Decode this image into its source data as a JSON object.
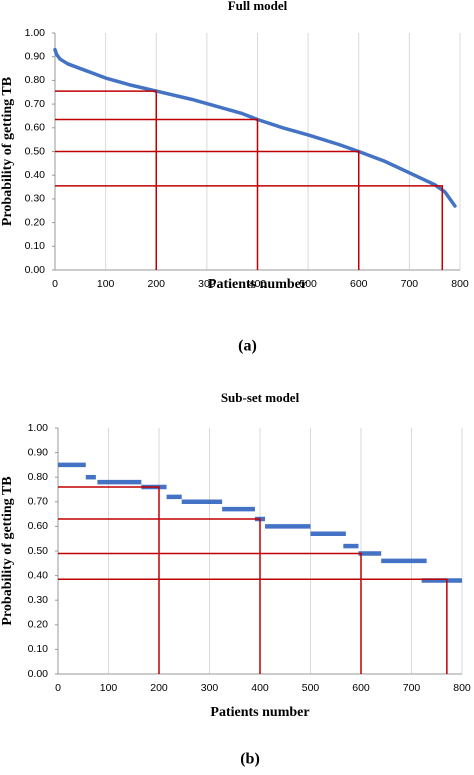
{
  "chart_data": [
    {
      "type": "line",
      "title": "Full model",
      "xlabel": "Patients number",
      "ylabel": "Probability of getting TB",
      "caption": "(a)",
      "x": [
        0,
        3,
        10,
        25,
        50,
        75,
        100,
        150,
        200,
        270,
        320,
        370,
        400,
        450,
        500,
        560,
        600,
        650,
        700,
        750,
        770,
        780,
        790
      ],
      "values": [
        0.93,
        0.91,
        0.89,
        0.87,
        0.85,
        0.83,
        0.81,
        0.78,
        0.755,
        0.72,
        0.69,
        0.66,
        0.635,
        0.6,
        0.57,
        0.53,
        0.5,
        0.46,
        0.41,
        0.36,
        0.33,
        0.3,
        0.27
      ],
      "color": "#4472c4",
      "reference_lines": {
        "x": [
          200,
          400,
          600,
          765
        ],
        "y": [
          0.755,
          0.635,
          0.5,
          0.355
        ],
        "color": "#c00000"
      },
      "xlim": [
        0,
        800
      ],
      "xticks": [
        0,
        100,
        200,
        300,
        400,
        500,
        600,
        700,
        800
      ],
      "ylim": [
        0,
        1
      ],
      "yticks": [
        {
          "value": 0,
          "label": "0.00"
        },
        {
          "value": 0.1,
          "label": "0.10"
        },
        {
          "value": 0.2,
          "label": "0.20"
        },
        {
          "value": 0.3,
          "label": "0.30"
        },
        {
          "value": 0.4,
          "label": "0.40"
        },
        {
          "value": 0.5,
          "label": "0.50"
        },
        {
          "value": 0.6,
          "label": "0.60"
        },
        {
          "value": 0.7,
          "label": "0.70"
        },
        {
          "value": 0.8,
          "label": "0.80"
        },
        {
          "value": 0.9,
          "label": "0.90"
        },
        {
          "value": 1,
          "label": "1.00"
        }
      ],
      "grid": "x"
    },
    {
      "type": "segment",
      "title": "Sub-set model",
      "xlabel": "Patients number",
      "ylabel": "Probability of getting TB",
      "caption": "(b)",
      "x_start": [
        0,
        55,
        78,
        165,
        215,
        245,
        325,
        390,
        410,
        500,
        565,
        595,
        640,
        720
      ],
      "x_end": [
        55,
        75,
        165,
        215,
        245,
        325,
        390,
        410,
        500,
        570,
        595,
        640,
        730,
        800
      ],
      "values": [
        0.85,
        0.8,
        0.78,
        0.76,
        0.72,
        0.7,
        0.67,
        0.63,
        0.6,
        0.57,
        0.52,
        0.49,
        0.46,
        0.38
      ],
      "color": "#4472c4",
      "reference_lines": {
        "x": [
          200,
          400,
          600,
          770
        ],
        "y": [
          0.76,
          0.63,
          0.49,
          0.385
        ],
        "color": "#c00000"
      },
      "xlim": [
        0,
        800
      ],
      "xticks": [
        0,
        100,
        200,
        300,
        400,
        500,
        600,
        700,
        800
      ],
      "ylim": [
        0,
        1
      ],
      "yticks": [
        {
          "value": 0,
          "label": "0.00"
        },
        {
          "value": 0.1,
          "label": "0.10"
        },
        {
          "value": 0.2,
          "label": "0.20"
        },
        {
          "value": 0.3,
          "label": "0.30"
        },
        {
          "value": 0.4,
          "label": "0.40"
        },
        {
          "value": 0.5,
          "label": "0.50"
        },
        {
          "value": 0.6,
          "label": "0.60"
        },
        {
          "value": 0.7,
          "label": "0.70"
        },
        {
          "value": 0.8,
          "label": "0.80"
        },
        {
          "value": 0.9,
          "label": "0.90"
        },
        {
          "value": 1,
          "label": "1.00"
        }
      ],
      "grid": "x"
    }
  ]
}
